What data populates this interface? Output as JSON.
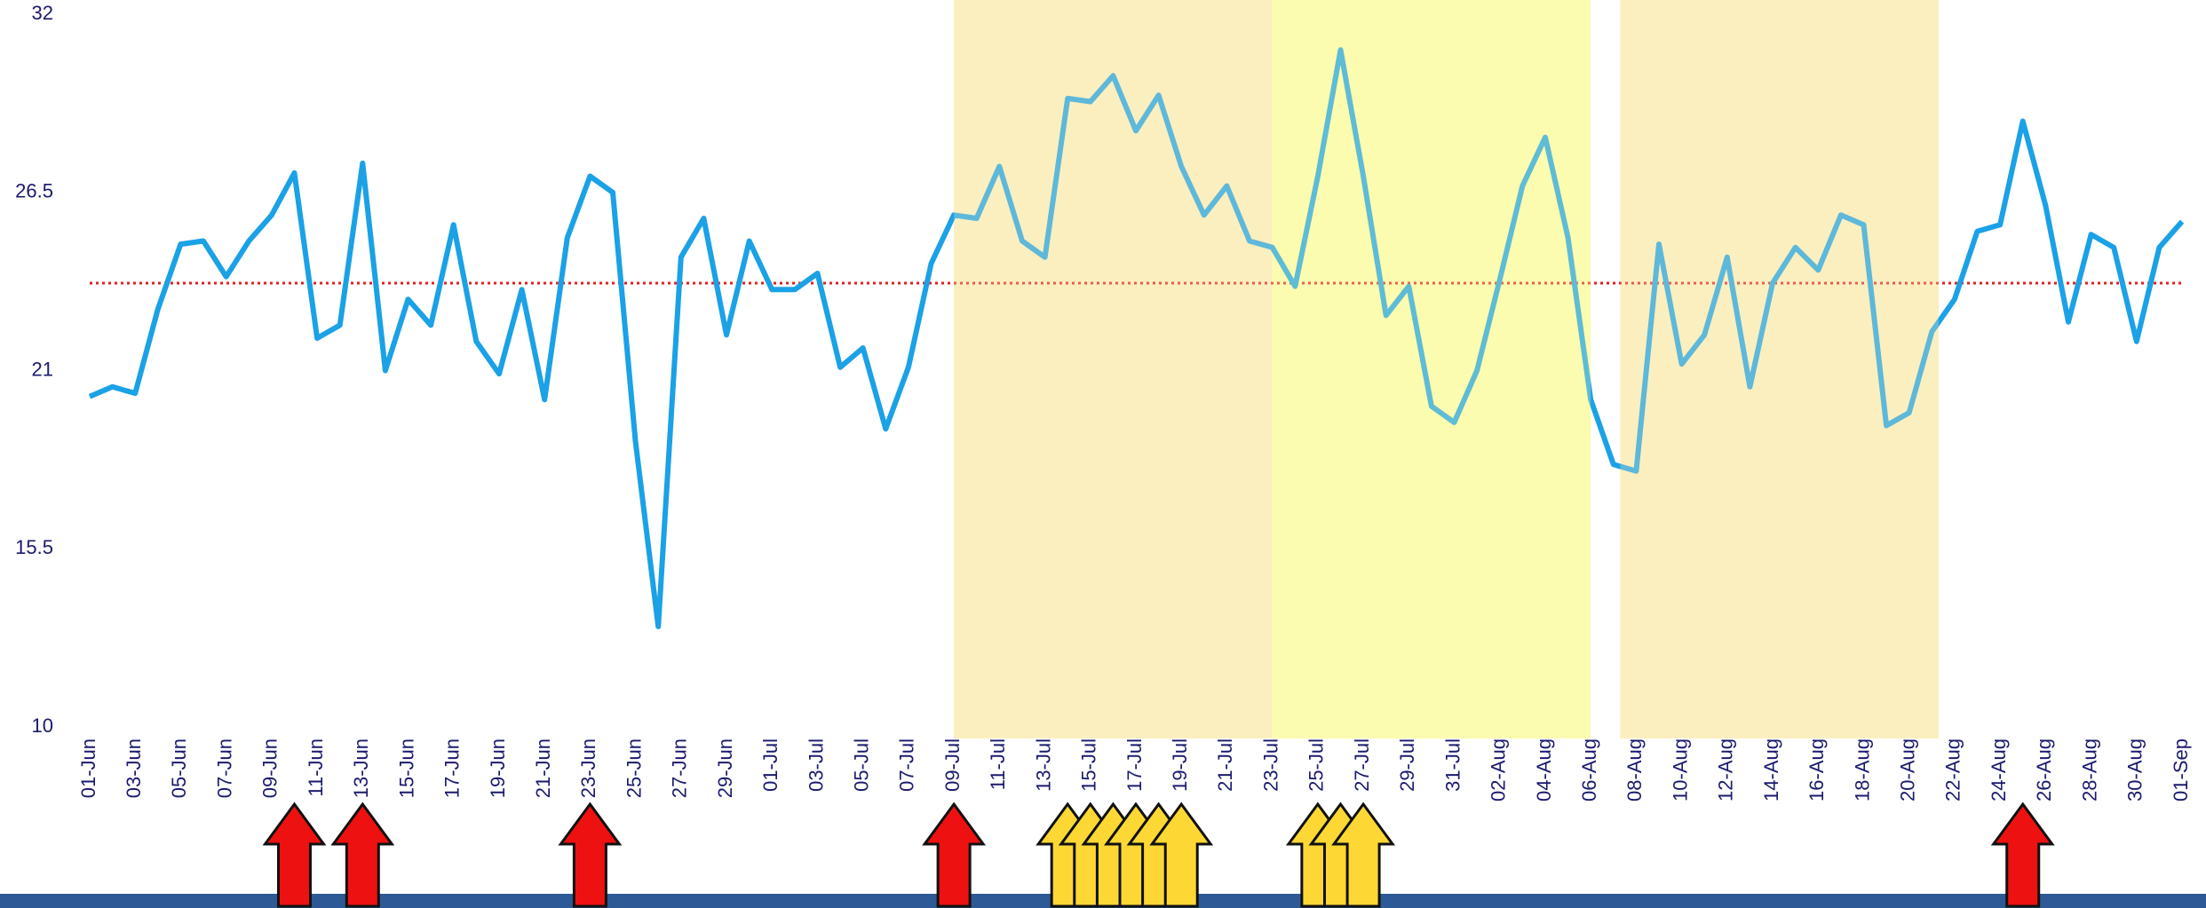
{
  "chart_data": {
    "type": "line",
    "categories": [
      "01-Jun",
      null,
      "03-Jun",
      null,
      "05-Jun",
      null,
      "07-Jun",
      null,
      "09-Jun",
      null,
      "11-Jun",
      null,
      "13-Jun",
      null,
      "15-Jun",
      null,
      "17-Jun",
      null,
      "19-Jun",
      null,
      "21-Jun",
      null,
      "23-Jun",
      null,
      "25-Jun",
      null,
      "27-Jun",
      null,
      "29-Jun",
      null,
      "01-Jul",
      null,
      "03-Jul",
      null,
      "05-Jul",
      null,
      "07-Jul",
      null,
      "09-Jul",
      null,
      "11-Jul",
      null,
      "13-Jul",
      null,
      "15-Jul",
      null,
      "17-Jul",
      null,
      "19-Jul",
      null,
      "21-Jul",
      null,
      "23-Jul",
      null,
      "25-Jul",
      null,
      "27-Jul",
      null,
      "29-Jul",
      null,
      "31-Jul",
      null,
      "02-Aug",
      null,
      "04-Aug",
      null,
      "06-Aug",
      null,
      "08-Aug",
      null,
      "10-Aug",
      null,
      "12-Aug",
      null,
      "14-Aug",
      null,
      "16-Aug",
      null,
      "18-Aug",
      null,
      "20-Aug",
      null,
      "22-Aug",
      null,
      "24-Aug",
      null,
      "26-Aug",
      null,
      "28-Aug",
      null,
      "30-Aug",
      null,
      "01-Sep"
    ],
    "series": [
      {
        "color": "#1ba1e6",
        "values": [
          20.2,
          20.5,
          20.3,
          22.9,
          24.9,
          25.0,
          23.9,
          25.0,
          25.8,
          27.1,
          22.0,
          22.4,
          27.4,
          21.0,
          23.2,
          22.4,
          25.5,
          21.9,
          20.9,
          23.5,
          20.1,
          25.1,
          27.0,
          26.5,
          18.8,
          13.1,
          24.5,
          25.7,
          22.1,
          25.0,
          23.5,
          23.5,
          24.0,
          21.1,
          21.7,
          19.2,
          21.1,
          24.3,
          25.8,
          25.7,
          27.3,
          25.0,
          24.5,
          29.4,
          29.3,
          30.1,
          28.4,
          29.5,
          27.3,
          25.8,
          26.7,
          25.0,
          24.8,
          23.6,
          27.0,
          30.9,
          27.0,
          22.7,
          23.6,
          19.9,
          19.4,
          21.0,
          23.8,
          26.7,
          28.2,
          25.1,
          20.1,
          18.1,
          17.9,
          24.9,
          21.2,
          22.1,
          24.5,
          20.5,
          23.7,
          24.8,
          24.1,
          25.8,
          25.5,
          19.3,
          19.7,
          22.2,
          23.2,
          25.3,
          25.5,
          28.7,
          26.1,
          22.5,
          25.2,
          24.8,
          21.9,
          24.8,
          25.6
        ]
      }
    ],
    "ylim": [
      10,
      32
    ],
    "yticks": [
      10,
      15.5,
      21,
      26.5,
      32
    ],
    "reference_line": {
      "value": 23.7,
      "color": "#e02020"
    },
    "shaded_ranges": [
      {
        "start": 38,
        "end": 52,
        "color": "#fbefc0"
      },
      {
        "start": 52,
        "end": 66,
        "color": "#fdfdb0"
      },
      {
        "start": 67.3,
        "end": 81.3,
        "color": "#fbefc0"
      }
    ],
    "events": [
      {
        "index": 9,
        "color": "#ee1111"
      },
      {
        "index": 12,
        "color": "#ee1111"
      },
      {
        "index": 22,
        "color": "#ee1111"
      },
      {
        "index": 38,
        "color": "#ee1111"
      },
      {
        "index": 43,
        "color": "#fdd835"
      },
      {
        "index": 44,
        "color": "#fdd835"
      },
      {
        "index": 45,
        "color": "#fdd835"
      },
      {
        "index": 46,
        "color": "#fdd835"
      },
      {
        "index": 47,
        "color": "#fdd835"
      },
      {
        "index": 48,
        "color": "#fdd835"
      },
      {
        "index": 54,
        "color": "#fdd835"
      },
      {
        "index": 55,
        "color": "#fdd835"
      },
      {
        "index": 56,
        "color": "#fdd835"
      },
      {
        "index": 85,
        "color": "#ee1111"
      }
    ]
  }
}
